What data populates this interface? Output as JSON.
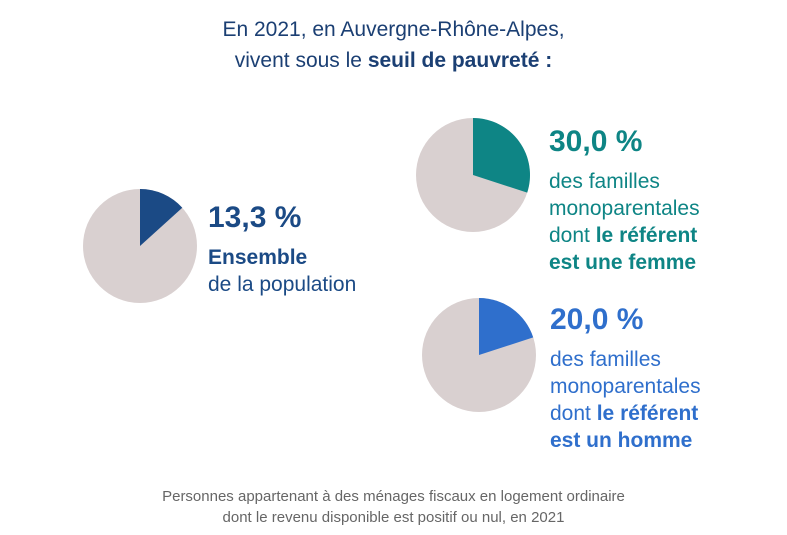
{
  "title": {
    "line1": "En 2021, en Auvergne-Rhône-Alpes,",
    "line2_prefix": "vivent sous le ",
    "line2_bold": "seuil de pauvreté :"
  },
  "chart_data": [
    {
      "type": "pie",
      "value_pct": 13.3,
      "label_value": "13,3 %",
      "label_lines": [
        {
          "bold": "Ensemble",
          "normal": ""
        },
        {
          "bold": "",
          "normal": "de la population"
        }
      ],
      "color": "#1b4a85",
      "rest_color": "#d9d0d0"
    },
    {
      "type": "pie",
      "value_pct": 30.0,
      "label_value": "30,0 %",
      "label_lines": [
        {
          "bold": "",
          "normal": "des familles"
        },
        {
          "bold": "",
          "normal": "monoparentales"
        },
        {
          "bold": "le référent",
          "normal": "dont "
        },
        {
          "bold": "est une femme",
          "normal": ""
        }
      ],
      "color": "#0e8585",
      "rest_color": "#d9d0d0"
    },
    {
      "type": "pie",
      "value_pct": 20.0,
      "label_value": "20,0 %",
      "label_lines": [
        {
          "bold": "",
          "normal": "des familles"
        },
        {
          "bold": "",
          "normal": "monoparentales"
        },
        {
          "bold": "le référent",
          "normal": "dont "
        },
        {
          "bold": "est un homme",
          "normal": ""
        }
      ],
      "color": "#2f6fcc",
      "rest_color": "#d9d0d0"
    }
  ],
  "footnote": {
    "line1": "Personnes appartenant à des ménages fiscaux en logement ordinaire",
    "line2": "dont le revenu disponible est positif ou nul, en 2021"
  }
}
